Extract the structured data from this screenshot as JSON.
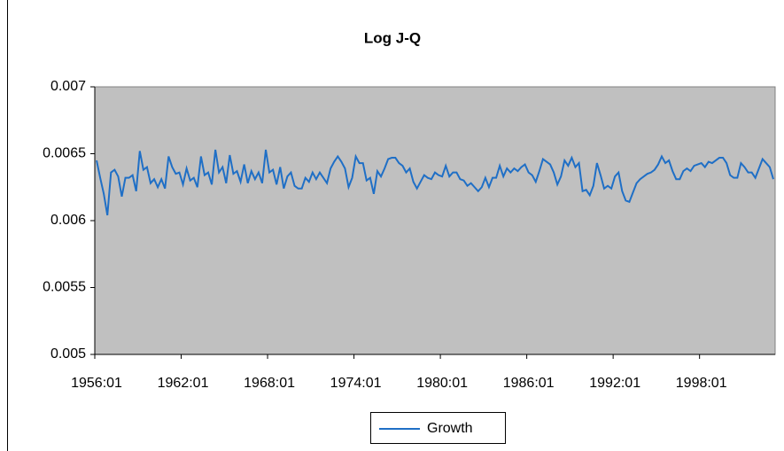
{
  "chart_data": {
    "type": "line",
    "title": "Log J-Q",
    "categories": [
      "1956:01",
      null,
      null,
      null,
      null,
      null,
      null,
      null,
      null,
      null,
      null,
      null,
      null,
      null,
      null,
      null,
      null,
      null,
      null,
      null,
      null,
      null,
      null,
      null,
      "1962:01",
      null,
      null,
      null,
      null,
      null,
      null,
      null,
      null,
      null,
      null,
      null,
      null,
      null,
      null,
      null,
      null,
      null,
      null,
      null,
      null,
      null,
      null,
      null,
      "1968:01",
      null,
      null,
      null,
      null,
      null,
      null,
      null,
      null,
      null,
      null,
      null,
      null,
      null,
      null,
      null,
      null,
      null,
      null,
      null,
      null,
      null,
      null,
      null,
      "1974:01",
      null,
      null,
      null,
      null,
      null,
      null,
      null,
      null,
      null,
      null,
      null,
      null,
      null,
      null,
      null,
      null,
      null,
      null,
      null,
      null,
      null,
      null,
      null,
      "1980:01",
      null,
      null,
      null,
      null,
      null,
      null,
      null,
      null,
      null,
      null,
      null,
      null,
      null,
      null,
      null,
      null,
      null,
      null,
      null,
      null,
      null,
      null,
      null,
      "1986:01",
      null,
      null,
      null,
      null,
      null,
      null,
      null,
      null,
      null,
      null,
      null,
      null,
      null,
      null,
      null,
      null,
      null,
      null,
      null,
      null,
      null,
      null,
      null,
      "1992:01",
      null,
      null,
      null,
      null,
      null,
      null,
      null,
      null,
      null,
      null,
      null,
      null,
      null,
      null,
      null,
      null,
      null,
      null,
      null,
      null,
      null,
      null,
      null,
      "1998:01",
      null,
      null,
      null,
      null,
      null,
      null,
      null,
      null,
      null,
      null,
      null,
      null,
      null,
      null,
      null,
      null,
      null,
      null,
      null,
      null
    ],
    "series": [
      {
        "name": "Growth",
        "color": "#1f6fc6",
        "values": [
          0.00645,
          0.00632,
          0.0062,
          0.00604,
          0.00636,
          0.00638,
          0.00633,
          0.00618,
          0.00632,
          0.00632,
          0.00634,
          0.00622,
          0.00652,
          0.00638,
          0.0064,
          0.00628,
          0.00631,
          0.00625,
          0.00631,
          0.00624,
          0.00648,
          0.0064,
          0.00635,
          0.00636,
          0.00627,
          0.00639,
          0.0063,
          0.00632,
          0.00625,
          0.00648,
          0.00634,
          0.00636,
          0.00627,
          0.00653,
          0.00636,
          0.0064,
          0.00628,
          0.00649,
          0.00635,
          0.00637,
          0.00629,
          0.00642,
          0.00628,
          0.00637,
          0.00631,
          0.00636,
          0.00628,
          0.00653,
          0.00636,
          0.00638,
          0.00627,
          0.0064,
          0.00624,
          0.00633,
          0.00636,
          0.00626,
          0.00624,
          0.00624,
          0.00632,
          0.00629,
          0.00636,
          0.00631,
          0.00636,
          0.00632,
          0.00628,
          0.00639,
          0.00644,
          0.00648,
          0.00644,
          0.00639,
          0.00625,
          0.00632,
          0.00648,
          0.00643,
          0.00643,
          0.0063,
          0.00632,
          0.0062,
          0.00637,
          0.00633,
          0.00639,
          0.00646,
          0.00647,
          0.00647,
          0.00643,
          0.00641,
          0.00636,
          0.00639,
          0.00629,
          0.00624,
          0.00629,
          0.00634,
          0.00632,
          0.00631,
          0.00636,
          0.00634,
          0.00633,
          0.00641,
          0.00633,
          0.00636,
          0.00636,
          0.00631,
          0.0063,
          0.00626,
          0.00628,
          0.00625,
          0.00622,
          0.00625,
          0.00632,
          0.00625,
          0.00632,
          0.00632,
          0.00641,
          0.00633,
          0.00639,
          0.00636,
          0.00639,
          0.00637,
          0.0064,
          0.00642,
          0.00636,
          0.00634,
          0.00629,
          0.00637,
          0.00646,
          0.00644,
          0.00642,
          0.00636,
          0.00627,
          0.00633,
          0.00645,
          0.00641,
          0.00647,
          0.0064,
          0.00643,
          0.00622,
          0.00623,
          0.00619,
          0.00626,
          0.00643,
          0.00634,
          0.00624,
          0.00626,
          0.00624,
          0.00633,
          0.00636,
          0.00622,
          0.00615,
          0.00614,
          0.00621,
          0.00628,
          0.00631,
          0.00633,
          0.00635,
          0.00636,
          0.00638,
          0.00642,
          0.00648,
          0.00643,
          0.00645,
          0.00637,
          0.00631,
          0.00631,
          0.00637,
          0.00639,
          0.00637,
          0.00641,
          0.00642,
          0.00643,
          0.0064,
          0.00644,
          0.00643,
          0.00645,
          0.00647,
          0.00647,
          0.00643,
          0.00634,
          0.00632,
          0.00632,
          0.00643,
          0.0064,
          0.00636,
          0.00636,
          0.00632,
          0.00639,
          0.00646,
          0.00643,
          0.0064,
          0.00631
        ]
      }
    ],
    "ylim": [
      0.005,
      0.007
    ],
    "yticks": [
      0.005,
      0.0055,
      0.006,
      0.0065,
      0.007
    ],
    "grid": false,
    "legend": "bottom",
    "plot_background": "#c0c0c0"
  }
}
